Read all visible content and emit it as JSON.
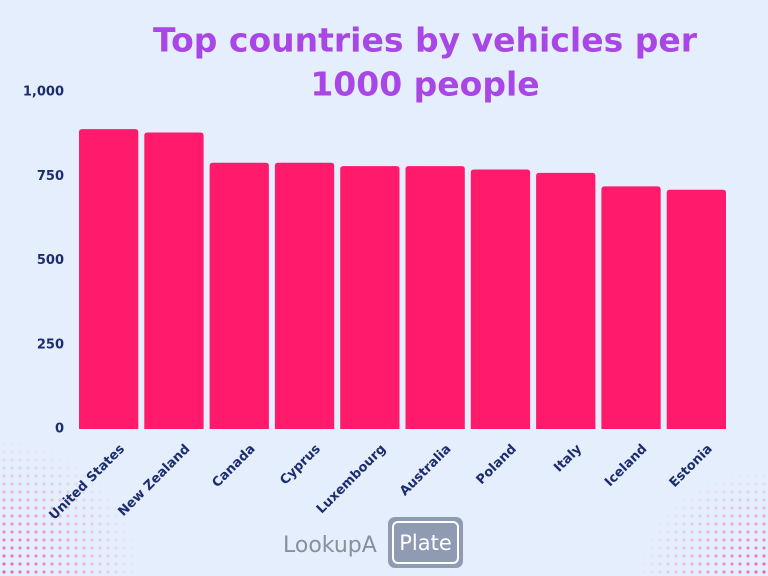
{
  "chart_data": {
    "type": "bar",
    "title_lines": [
      "Top countries by vehicles per",
      "1000 people"
    ],
    "categories": [
      "United States",
      "New Zealand",
      "Canada",
      "Cyprus",
      "Luxembourg",
      "Australia",
      "Poland",
      "Italy",
      "Iceland",
      "Estonia"
    ],
    "values": [
      890,
      880,
      790,
      790,
      780,
      780,
      770,
      760,
      720,
      710
    ],
    "color": "#ff1a6c",
    "ylim": [
      0,
      1000
    ],
    "yticks": [
      0,
      250,
      500,
      750,
      {
        "value": 1000,
        "label": "1,000"
      }
    ],
    "grid": false
  },
  "logo": {
    "left": "LookupA",
    "right": "Plate"
  }
}
